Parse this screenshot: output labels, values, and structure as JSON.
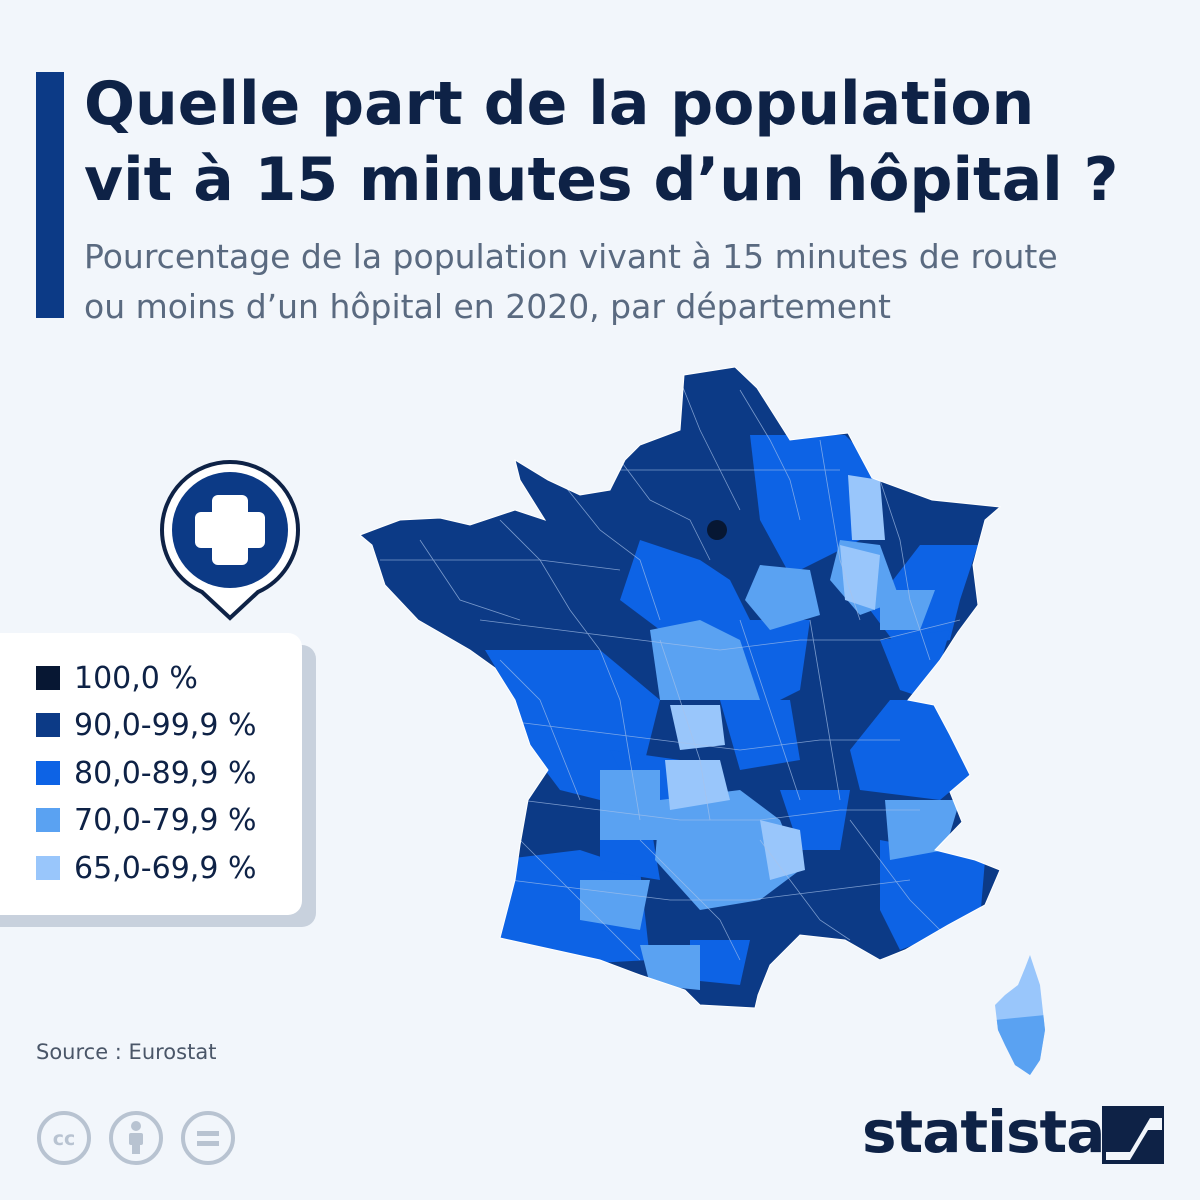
{
  "title_line1": "Quelle part de la population",
  "title_line2": "vit à 15 minutes d’un hôpital ?",
  "subtitle_line1": "Pourcentage de la population vivant à 15 minutes de route",
  "subtitle_line2": "ou moins d’un hôpital en 2020, par département",
  "legend": [
    {
      "label": "100,0 %",
      "color": "#071733"
    },
    {
      "label": "90,0-99,9 %",
      "color": "#0c3a86"
    },
    {
      "label": "80,0-89,9 %",
      "color": "#0d63e5"
    },
    {
      "label": "70,0-79,9 %",
      "color": "#5aa2f2"
    },
    {
      "label": "65,0-69,9 %",
      "color": "#99c6fb"
    }
  ],
  "source": "Source : Eurostat",
  "brand": "statista",
  "icons": [
    "hospital-cross-pin-icon",
    "cc-icon",
    "attribution-icon",
    "no-derivatives-icon",
    "statista-logo-icon"
  ],
  "colors": {
    "title": "#0e2246",
    "accent": "#0c3a86",
    "background": "#f2f6fb"
  }
}
